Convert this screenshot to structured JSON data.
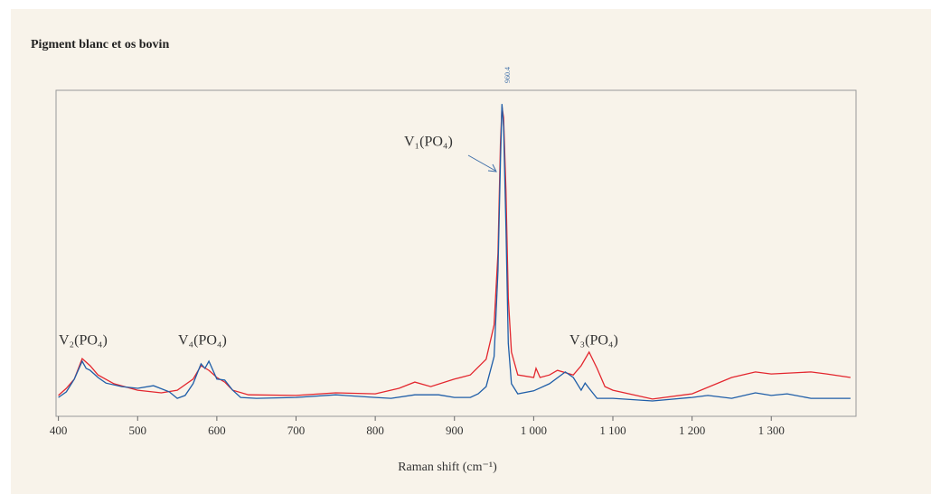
{
  "chart_data": {
    "type": "line",
    "title": "Pigment blanc et os bovin",
    "x_label": "Raman shift (cm⁻¹)",
    "xlim": [
      397,
      1407
    ],
    "ylim": [
      0,
      100
    ],
    "xticks": [
      400,
      500,
      600,
      700,
      800,
      900,
      {
        "value": 1000,
        "label": "1 000"
      },
      {
        "value": 1100,
        "label": "1 100"
      },
      {
        "value": 1200,
        "label": "1 200"
      },
      {
        "value": 1300,
        "label": "1 300"
      }
    ],
    "annotations": [
      "V₂(PO₄)",
      "V₄(PO₄)",
      "V₁(PO₄)",
      "V₃(PO₄)",
      "960.4"
    ],
    "series": [
      {
        "color": "#e3262e",
        "x": [
          400,
          410,
          420,
          430,
          440,
          450,
          470,
          500,
          530,
          550,
          570,
          580,
          590,
          600,
          610,
          620,
          640,
          700,
          750,
          800,
          830,
          850,
          870,
          900,
          920,
          940,
          950,
          955,
          958,
          960,
          962,
          965,
          968,
          972,
          980,
          1000,
          1003,
          1008,
          1020,
          1030,
          1050,
          1060,
          1070,
          1080,
          1090,
          1100,
          1150,
          1200,
          1250,
          1280,
          1300,
          1350,
          1370,
          1400
        ],
        "values": [
          6.4,
          8.6,
          11.4,
          17.7,
          15.5,
          12.7,
          10.0,
          8.0,
          7.2,
          8.0,
          11.4,
          15.5,
          14.1,
          11.9,
          10.5,
          8.0,
          6.6,
          6.4,
          7.2,
          6.9,
          8.6,
          10.5,
          9.1,
          11.4,
          12.7,
          17.5,
          28.0,
          50.1,
          83.4,
          95.0,
          91.7,
          69.5,
          36.3,
          19.7,
          12.7,
          11.9,
          14.7,
          11.9,
          12.7,
          14.1,
          12.7,
          15.5,
          19.7,
          14.7,
          9.1,
          8.0,
          5.3,
          6.9,
          11.9,
          13.6,
          13.0,
          13.6,
          13.0,
          11.9
        ]
      },
      {
        "color": "#1f5ea8",
        "x": [
          400,
          410,
          420,
          430,
          435,
          440,
          450,
          460,
          480,
          500,
          520,
          540,
          550,
          560,
          570,
          580,
          585,
          590,
          600,
          610,
          620,
          630,
          650,
          700,
          750,
          800,
          820,
          850,
          880,
          900,
          920,
          930,
          940,
          950,
          955,
          958,
          960,
          962,
          965,
          968,
          972,
          980,
          1000,
          1020,
          1040,
          1050,
          1060,
          1065,
          1070,
          1080,
          1100,
          1150,
          1200,
          1220,
          1250,
          1280,
          1300,
          1320,
          1350,
          1400
        ],
        "values": [
          5.8,
          7.5,
          11.4,
          16.9,
          14.7,
          14.1,
          11.9,
          10.2,
          9.1,
          8.6,
          9.4,
          7.5,
          5.5,
          6.4,
          10.0,
          16.1,
          14.7,
          16.9,
          11.4,
          11.1,
          8.0,
          5.8,
          5.5,
          5.8,
          6.6,
          5.8,
          5.5,
          6.6,
          6.6,
          5.8,
          5.8,
          6.9,
          9.1,
          18.3,
          44.6,
          77.8,
          95.8,
          88.9,
          58.4,
          22.4,
          10.0,
          6.9,
          7.8,
          10.0,
          13.6,
          11.9,
          8.0,
          10.2,
          8.6,
          5.5,
          5.5,
          4.7,
          5.8,
          6.4,
          5.5,
          7.2,
          6.4,
          6.9,
          5.5,
          5.5
        ]
      }
    ]
  }
}
